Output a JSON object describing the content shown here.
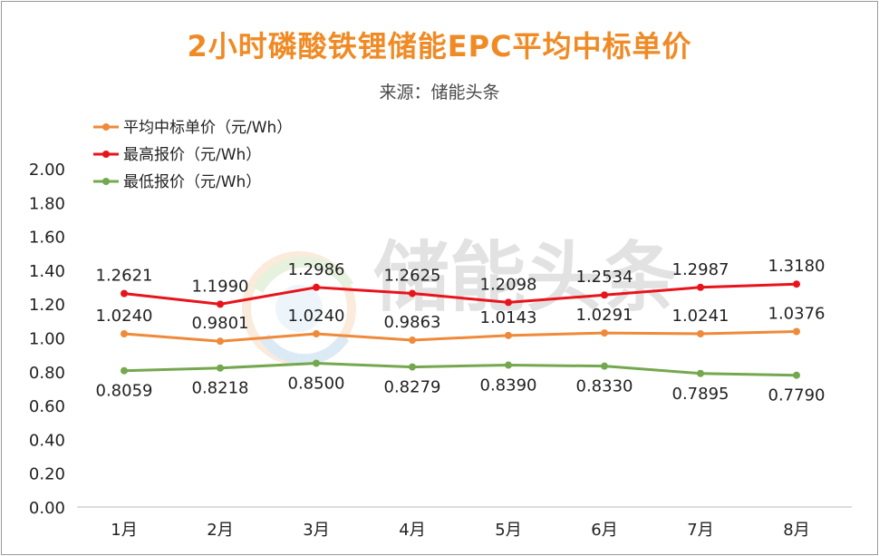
{
  "chart_data": {
    "type": "line",
    "title": "2小时磷酸铁锂储能EPC平均中标单价",
    "subtitle": "来源：储能头条",
    "watermark": "储能头条",
    "categories": [
      "1月",
      "2月",
      "3月",
      "4月",
      "5月",
      "6月",
      "7月",
      "8月"
    ],
    "ylim": [
      0,
      2.0
    ],
    "yticks": [
      "0.00",
      "0.20",
      "0.40",
      "0.60",
      "0.80",
      "1.00",
      "1.20",
      "1.40",
      "1.60",
      "1.80",
      "2.00"
    ],
    "grid": false,
    "legend_position": "top-left",
    "series": [
      {
        "name": "平均中标单价（元/Wh）",
        "color": "#ee8a3a",
        "values": [
          1.024,
          0.9801,
          1.024,
          0.9863,
          1.0143,
          1.0291,
          1.0241,
          1.0376
        ],
        "labels": [
          "1.0240",
          "0.9801",
          "1.0240",
          "0.9863",
          "1.0143",
          "1.0291",
          "1.0241",
          "1.0376"
        ]
      },
      {
        "name": "最高报价（元/Wh）",
        "color": "#e8141b",
        "values": [
          1.2621,
          1.199,
          1.2986,
          1.2625,
          1.2098,
          1.2534,
          1.2987,
          1.318
        ],
        "labels": [
          "1.2621",
          "1.1990",
          "1.2986",
          "1.2625",
          "1.2098",
          "1.2534",
          "1.2987",
          "1.3180"
        ]
      },
      {
        "name": "最低报价（元/Wh）",
        "color": "#74a84e",
        "values": [
          0.8059,
          0.8218,
          0.85,
          0.8279,
          0.839,
          0.833,
          0.7895,
          0.779
        ],
        "labels": [
          "0.8059",
          "0.8218",
          "0.8500",
          "0.8279",
          "0.8390",
          "0.8330",
          "0.7895",
          "0.7790"
        ]
      }
    ]
  }
}
